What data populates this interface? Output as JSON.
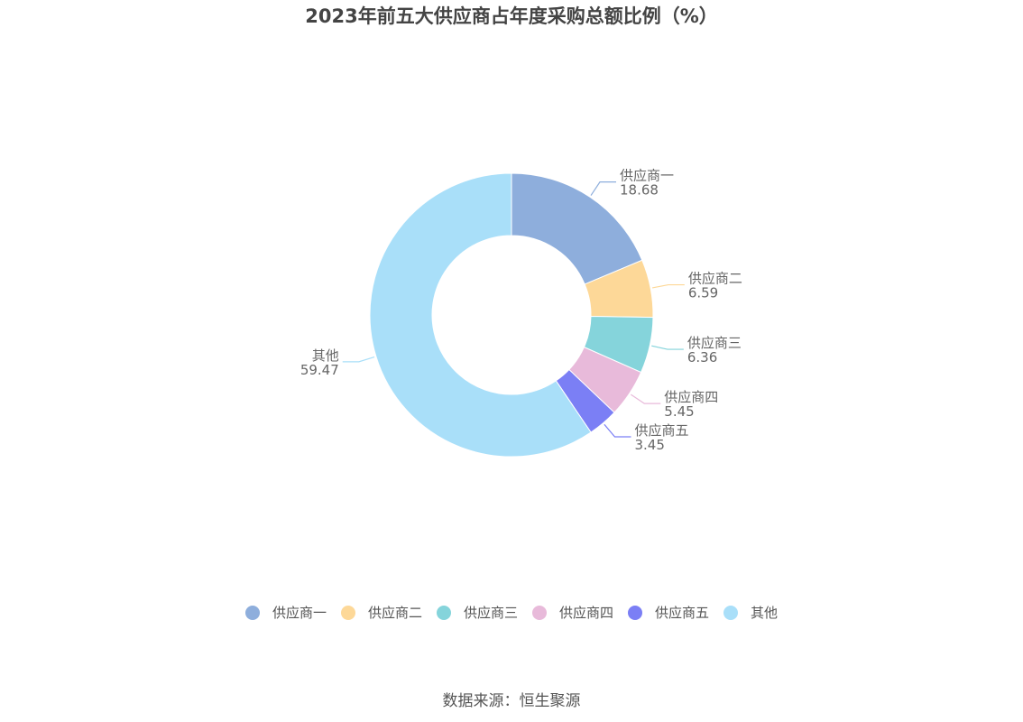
{
  "chart_data": {
    "type": "pie",
    "title": "2023年前五大供应商占年度采购总额比例（%）",
    "donut": true,
    "legend_position": "bottom",
    "slices": [
      {
        "label": "供应商一",
        "value": 18.68,
        "value_text": "18.68",
        "color": "#8eaedc"
      },
      {
        "label": "供应商二",
        "value": 6.59,
        "value_text": "6.59",
        "color": "#fdd898"
      },
      {
        "label": "供应商三",
        "value": 6.36,
        "value_text": "6.36",
        "color": "#85d4db"
      },
      {
        "label": "供应商四",
        "value": 5.45,
        "value_text": "5.45",
        "color": "#e8bada"
      },
      {
        "label": "供应商五",
        "value": 3.45,
        "value_text": "3.45",
        "color": "#7b7ff5"
      },
      {
        "label": "其他",
        "value": 59.47,
        "value_text": "59.47",
        "color": "#a9dff9"
      }
    ]
  },
  "source": "数据来源：恒生聚源"
}
